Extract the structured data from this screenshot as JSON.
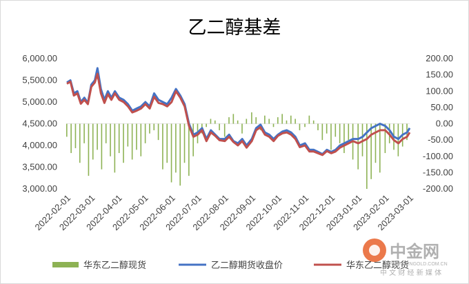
{
  "chart_data": {
    "type": "bar+line",
    "title": "乙二醇基差",
    "left_axis": {
      "min": 3000,
      "max": 6000,
      "step": 500,
      "ticks": [
        "3,000.00",
        "3,500.00",
        "4,000.00",
        "4,500.00",
        "5,000.00",
        "5,500.00",
        "6,000.00"
      ]
    },
    "right_axis": {
      "min": -200,
      "max": 200,
      "step": 50,
      "ticks": [
        "-200.00",
        "-150.00",
        "-100.00",
        "-50.00",
        "0.00",
        "50.00",
        "100.00",
        "150.00",
        "200.00"
      ]
    },
    "x_ticks": [
      "2022-02-01",
      "2022-03-01",
      "2022-04-01",
      "2022-05-01",
      "2022-06-01",
      "2022-07-01",
      "2022-08-01",
      "2022-09-01",
      "2022-10-01",
      "2022-11-01",
      "2022-12-01",
      "2023-01-01",
      "2023-02-01",
      "2023-03-01"
    ],
    "legend_position": "bottom",
    "series": [
      {
        "name": "华东乙二醇现货",
        "type": "bar",
        "axis": "right",
        "color": "#8db254",
        "points": [
          [
            "2022-02-01",
            -40
          ],
          [
            "2022-02-06",
            -90
          ],
          [
            "2022-02-11",
            -75
          ],
          [
            "2022-02-16",
            -120
          ],
          [
            "2022-02-21",
            -60
          ],
          [
            "2022-02-26",
            -160
          ],
          [
            "2022-03-03",
            -110
          ],
          [
            "2022-03-08",
            -80
          ],
          [
            "2022-03-13",
            -140
          ],
          [
            "2022-03-18",
            -60
          ],
          [
            "2022-03-23",
            -100
          ],
          [
            "2022-03-28",
            -150
          ],
          [
            "2022-04-02",
            -90
          ],
          [
            "2022-04-07",
            -120
          ],
          [
            "2022-04-12",
            -70
          ],
          [
            "2022-04-17",
            -110
          ],
          [
            "2022-04-22",
            -80
          ],
          [
            "2022-04-27",
            -100
          ],
          [
            "2022-05-02",
            -60
          ],
          [
            "2022-05-07",
            -30
          ],
          [
            "2022-05-12",
            -20
          ],
          [
            "2022-05-17",
            -50
          ],
          [
            "2022-05-22",
            -140
          ],
          [
            "2022-05-27",
            -120
          ],
          [
            "2022-06-01",
            -180
          ],
          [
            "2022-06-06",
            -150
          ],
          [
            "2022-06-11",
            -190
          ],
          [
            "2022-06-16",
            -120
          ],
          [
            "2022-06-21",
            -160
          ],
          [
            "2022-06-26",
            -100
          ],
          [
            "2022-07-01",
            -60
          ],
          [
            "2022-07-06",
            -30
          ],
          [
            "2022-07-11",
            -10
          ],
          [
            "2022-07-16",
            15
          ],
          [
            "2022-07-21",
            10
          ],
          [
            "2022-07-26",
            -20
          ],
          [
            "2022-08-01",
            -40
          ],
          [
            "2022-08-06",
            20
          ],
          [
            "2022-08-11",
            30
          ],
          [
            "2022-08-16",
            10
          ],
          [
            "2022-08-21",
            -30
          ],
          [
            "2022-08-26",
            15
          ],
          [
            "2022-09-01",
            35
          ],
          [
            "2022-09-06",
            20
          ],
          [
            "2022-09-11",
            -20
          ],
          [
            "2022-09-16",
            25
          ],
          [
            "2022-09-21",
            15
          ],
          [
            "2022-09-26",
            -10
          ],
          [
            "2022-10-01",
            20
          ],
          [
            "2022-10-06",
            30
          ],
          [
            "2022-10-11",
            10
          ],
          [
            "2022-10-16",
            25
          ],
          [
            "2022-10-21",
            15
          ],
          [
            "2022-10-26",
            -20
          ],
          [
            "2022-11-01",
            -10
          ],
          [
            "2022-11-06",
            25
          ],
          [
            "2022-11-11",
            10
          ],
          [
            "2022-11-16",
            -20
          ],
          [
            "2022-11-21",
            -50
          ],
          [
            "2022-11-26",
            -30
          ],
          [
            "2022-12-01",
            -80
          ],
          [
            "2022-12-06",
            -40
          ],
          [
            "2022-12-11",
            -60
          ],
          [
            "2022-12-16",
            -90
          ],
          [
            "2022-12-21",
            -50
          ],
          [
            "2022-12-26",
            -110
          ],
          [
            "2023-01-01",
            -140
          ],
          [
            "2023-01-06",
            -100
          ],
          [
            "2023-01-11",
            -200
          ],
          [
            "2023-01-16",
            -170
          ],
          [
            "2023-01-21",
            -120
          ],
          [
            "2023-01-26",
            -150
          ],
          [
            "2023-02-01",
            -90
          ],
          [
            "2023-02-06",
            -60
          ],
          [
            "2023-02-11",
            -80
          ],
          [
            "2023-02-16",
            -100
          ],
          [
            "2023-02-21",
            -70
          ],
          [
            "2023-02-26",
            -50
          ]
        ]
      },
      {
        "name": "乙二醇期货收盘价",
        "type": "line",
        "axis": "left",
        "color": "#4472c4",
        "points": [
          [
            "2022-02-01",
            5450
          ],
          [
            "2022-02-05",
            5500
          ],
          [
            "2022-02-09",
            5200
          ],
          [
            "2022-02-13",
            5250
          ],
          [
            "2022-02-17",
            5000
          ],
          [
            "2022-02-21",
            5100
          ],
          [
            "2022-02-25",
            4980
          ],
          [
            "2022-03-01",
            5400
          ],
          [
            "2022-03-05",
            5500
          ],
          [
            "2022-03-08",
            5780
          ],
          [
            "2022-03-12",
            5300
          ],
          [
            "2022-03-16",
            5050
          ],
          [
            "2022-03-20",
            5250
          ],
          [
            "2022-03-24",
            5100
          ],
          [
            "2022-03-28",
            5250
          ],
          [
            "2022-04-02",
            5100
          ],
          [
            "2022-04-07",
            5050
          ],
          [
            "2022-04-12",
            4950
          ],
          [
            "2022-04-17",
            4800
          ],
          [
            "2022-04-22",
            4850
          ],
          [
            "2022-04-27",
            4900
          ],
          [
            "2022-05-02",
            5000
          ],
          [
            "2022-05-07",
            4900
          ],
          [
            "2022-05-12",
            5200
          ],
          [
            "2022-05-17",
            5050
          ],
          [
            "2022-05-22",
            5000
          ],
          [
            "2022-05-27",
            4950
          ],
          [
            "2022-06-01",
            5100
          ],
          [
            "2022-06-06",
            5300
          ],
          [
            "2022-06-11",
            5150
          ],
          [
            "2022-06-16",
            4950
          ],
          [
            "2022-06-21",
            4500
          ],
          [
            "2022-06-26",
            4250
          ],
          [
            "2022-07-01",
            4300
          ],
          [
            "2022-07-06",
            4400
          ],
          [
            "2022-07-11",
            4150
          ],
          [
            "2022-07-16",
            4350
          ],
          [
            "2022-07-21",
            4250
          ],
          [
            "2022-07-26",
            4150
          ],
          [
            "2022-08-01",
            4150
          ],
          [
            "2022-08-06",
            4250
          ],
          [
            "2022-08-11",
            4100
          ],
          [
            "2022-08-16",
            4050
          ],
          [
            "2022-08-21",
            4150
          ],
          [
            "2022-08-26",
            4000
          ],
          [
            "2022-09-01",
            4150
          ],
          [
            "2022-09-06",
            4400
          ],
          [
            "2022-09-11",
            4480
          ],
          [
            "2022-09-16",
            4300
          ],
          [
            "2022-09-21",
            4250
          ],
          [
            "2022-09-26",
            4150
          ],
          [
            "2022-10-01",
            4250
          ],
          [
            "2022-10-06",
            4320
          ],
          [
            "2022-10-11",
            4350
          ],
          [
            "2022-10-16",
            4300
          ],
          [
            "2022-10-21",
            4200
          ],
          [
            "2022-10-26",
            4000
          ],
          [
            "2022-11-01",
            4050
          ],
          [
            "2022-11-06",
            3900
          ],
          [
            "2022-11-11",
            3900
          ],
          [
            "2022-11-16",
            3850
          ],
          [
            "2022-11-21",
            3800
          ],
          [
            "2022-11-26",
            3900
          ],
          [
            "2022-12-01",
            3850
          ],
          [
            "2022-12-06",
            3900
          ],
          [
            "2022-12-11",
            4000
          ],
          [
            "2022-12-16",
            4050
          ],
          [
            "2022-12-21",
            4100
          ],
          [
            "2022-12-26",
            4150
          ],
          [
            "2023-01-01",
            4150
          ],
          [
            "2023-01-06",
            4200
          ],
          [
            "2023-01-11",
            4300
          ],
          [
            "2023-01-16",
            4400
          ],
          [
            "2023-01-21",
            4450
          ],
          [
            "2023-01-26",
            4500
          ],
          [
            "2023-02-01",
            4450
          ],
          [
            "2023-02-06",
            4350
          ],
          [
            "2023-02-11",
            4200
          ],
          [
            "2023-02-16",
            4150
          ],
          [
            "2023-02-21",
            4250
          ],
          [
            "2023-02-26",
            4300
          ],
          [
            "2023-03-01",
            4400
          ]
        ]
      },
      {
        "name": "华东乙二醇现货",
        "type": "line",
        "axis": "left",
        "color": "#c0504d",
        "points": [
          [
            "2022-02-01",
            5420
          ],
          [
            "2022-02-05",
            5470
          ],
          [
            "2022-02-09",
            5150
          ],
          [
            "2022-02-13",
            5200
          ],
          [
            "2022-02-17",
            4960
          ],
          [
            "2022-02-21",
            5050
          ],
          [
            "2022-02-25",
            4950
          ],
          [
            "2022-03-01",
            5350
          ],
          [
            "2022-03-05",
            5450
          ],
          [
            "2022-03-08",
            5650
          ],
          [
            "2022-03-12",
            5200
          ],
          [
            "2022-03-16",
            4980
          ],
          [
            "2022-03-20",
            5180
          ],
          [
            "2022-03-24",
            5050
          ],
          [
            "2022-03-28",
            5200
          ],
          [
            "2022-04-02",
            5050
          ],
          [
            "2022-04-07",
            5000
          ],
          [
            "2022-04-12",
            4900
          ],
          [
            "2022-04-17",
            4760
          ],
          [
            "2022-04-22",
            4800
          ],
          [
            "2022-04-27",
            4850
          ],
          [
            "2022-05-02",
            4950
          ],
          [
            "2022-05-07",
            4850
          ],
          [
            "2022-05-12",
            5120
          ],
          [
            "2022-05-17",
            4980
          ],
          [
            "2022-05-22",
            4950
          ],
          [
            "2022-05-27",
            4900
          ],
          [
            "2022-06-01",
            5000
          ],
          [
            "2022-06-06",
            5250
          ],
          [
            "2022-06-11",
            5100
          ],
          [
            "2022-06-16",
            4900
          ],
          [
            "2022-06-21",
            4450
          ],
          [
            "2022-06-26",
            4200
          ],
          [
            "2022-07-01",
            4250
          ],
          [
            "2022-07-06",
            4350
          ],
          [
            "2022-07-11",
            4100
          ],
          [
            "2022-07-16",
            4300
          ],
          [
            "2022-07-21",
            4220
          ],
          [
            "2022-07-26",
            4120
          ],
          [
            "2022-08-01",
            4100
          ],
          [
            "2022-08-06",
            4200
          ],
          [
            "2022-08-11",
            4080
          ],
          [
            "2022-08-16",
            4000
          ],
          [
            "2022-08-21",
            4100
          ],
          [
            "2022-08-26",
            3950
          ],
          [
            "2022-09-01",
            4100
          ],
          [
            "2022-09-06",
            4350
          ],
          [
            "2022-09-11",
            4420
          ],
          [
            "2022-09-16",
            4250
          ],
          [
            "2022-09-21",
            4200
          ],
          [
            "2022-09-26",
            4100
          ],
          [
            "2022-10-01",
            4220
          ],
          [
            "2022-10-06",
            4280
          ],
          [
            "2022-10-11",
            4300
          ],
          [
            "2022-10-16",
            4250
          ],
          [
            "2022-10-21",
            4150
          ],
          [
            "2022-10-26",
            3960
          ],
          [
            "2022-11-01",
            4000
          ],
          [
            "2022-11-06",
            3860
          ],
          [
            "2022-11-11",
            3860
          ],
          [
            "2022-11-16",
            3820
          ],
          [
            "2022-11-21",
            3780
          ],
          [
            "2022-11-26",
            3870
          ],
          [
            "2022-12-01",
            3820
          ],
          [
            "2022-12-06",
            3860
          ],
          [
            "2022-12-11",
            3950
          ],
          [
            "2022-12-16",
            4000
          ],
          [
            "2022-12-21",
            4050
          ],
          [
            "2022-12-26",
            4100
          ],
          [
            "2023-01-01",
            4050
          ],
          [
            "2023-01-06",
            4100
          ],
          [
            "2023-01-11",
            4150
          ],
          [
            "2023-01-16",
            4250
          ],
          [
            "2023-01-21",
            4300
          ],
          [
            "2023-01-26",
            4350
          ],
          [
            "2023-02-01",
            4350
          ],
          [
            "2023-02-06",
            4250
          ],
          [
            "2023-02-11",
            4120
          ],
          [
            "2023-02-16",
            4050
          ],
          [
            "2023-02-21",
            4150
          ],
          [
            "2023-02-26",
            4200
          ],
          [
            "2023-03-01",
            4300
          ]
        ]
      }
    ]
  },
  "watermark": {
    "logo_text": "中金网",
    "logo_url": "WWW.CNGOLD.COM.CN",
    "logo_tagline": "中 文 财 经 新 媒 体"
  }
}
